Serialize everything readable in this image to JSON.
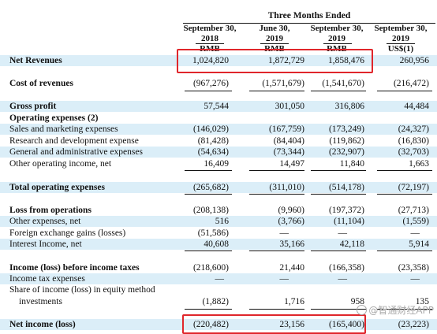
{
  "header": {
    "period": "Three Months Ended",
    "columns": [
      {
        "date_line1": "September 30,",
        "date_line2": "2018",
        "currency": "RMB"
      },
      {
        "date_line1": "June 30,",
        "date_line2": "2019",
        "currency": "RMB"
      },
      {
        "date_line1": "September 30,",
        "date_line2": "2019",
        "currency": "RMB"
      },
      {
        "date_line1": "September 30,",
        "date_line2": "2019",
        "currency": "US$(1)"
      }
    ]
  },
  "rows": {
    "net_revenues": {
      "label": "Net Revenues",
      "values": [
        "1,024,820",
        "1,872,729",
        "1,858,476",
        "260,956"
      ]
    },
    "cost_of_revenues": {
      "label": "Cost of revenues",
      "values": [
        "(967,276)",
        "(1,571,679)",
        "(1,541,670)",
        "(216,472)"
      ]
    },
    "gross_profit": {
      "label": "Gross profit",
      "values": [
        "57,544",
        "301,050",
        "316,806",
        "44,484"
      ]
    },
    "operating_expenses": {
      "label": "Operating expenses (2)"
    },
    "sales_marketing": {
      "label": "Sales and marketing expenses",
      "values": [
        "(146,029)",
        "(167,759)",
        "(173,249)",
        "(24,327)"
      ]
    },
    "research_development": {
      "label": "Research and development expense",
      "values": [
        "(81,428)",
        "(84,404)",
        "(119,862)",
        "(16,830)"
      ]
    },
    "general_admin": {
      "label": "General and administrative expenses",
      "values": [
        "(54,634)",
        "(73,344)",
        "(232,907)",
        "(32,703)"
      ]
    },
    "other_operating_income": {
      "label": "Other operating income, net",
      "values": [
        "16,409",
        "14,497",
        "11,840",
        "1,663"
      ]
    },
    "total_operating_expenses": {
      "label": "Total operating expenses",
      "values": [
        "(265,682)",
        "(311,010)",
        "(514,178)",
        "(72,197)"
      ]
    },
    "loss_from_operations": {
      "label": "Loss from operations",
      "values": [
        "(208,138)",
        "(9,960)",
        "(197,372)",
        "(27,713)"
      ]
    },
    "other_expenses": {
      "label": "Other expenses, net",
      "values": [
        "516",
        "(3,766)",
        "(11,104)",
        "(1,559)"
      ]
    },
    "fx_gains": {
      "label": "Foreign exchange gains (losses)",
      "values": [
        "(51,586)",
        "—",
        "—",
        "—"
      ]
    },
    "interest_income": {
      "label": "Interest Income, net",
      "values": [
        "40,608",
        "35,166",
        "42,118",
        "5,914"
      ]
    },
    "income_before_tax": {
      "label": "Income (loss) before income taxes",
      "values": [
        "(218,600)",
        "21,440",
        "(166,358)",
        "(23,358)"
      ]
    },
    "income_tax": {
      "label": "Income tax expenses",
      "values": [
        "—",
        "—",
        "—",
        "—"
      ]
    },
    "equity_method_line1": {
      "label": "Share of income (loss) in equity method"
    },
    "equity_method_line2": {
      "label": "investments",
      "values": [
        "(1,882)",
        "1,716",
        "958",
        "135"
      ]
    },
    "net_income": {
      "label": "Net income (loss)",
      "values": [
        "(220,482)",
        "23,156",
        "(165,400)",
        "(23,223)"
      ]
    }
  },
  "watermark": "@智通财经APP",
  "highlight_color": "#e0262b",
  "row_shade_color": "#dbeef8"
}
